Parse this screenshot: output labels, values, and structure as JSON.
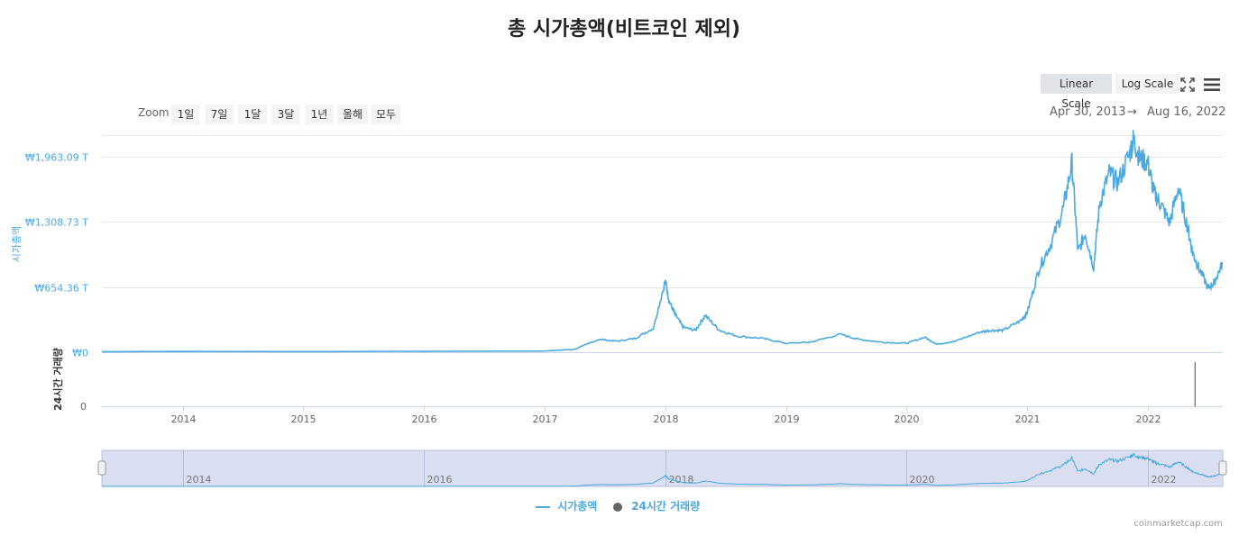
{
  "title": "총 시가총액(비트코인 제외)",
  "toolbar": {
    "linear_label": "Linear Scale",
    "log_label": "Log Scale",
    "fullscreen_icon": "fullscreen-icon",
    "menu_icon": "hamburger-menu-icon"
  },
  "zoom": {
    "label": "Zoom",
    "options": [
      "1일",
      "7일",
      "1달",
      "3달",
      "1년",
      "올해",
      "모두"
    ]
  },
  "range": {
    "from": "Apr 30, 2013",
    "arrow": "→",
    "to": "Aug 16, 2022"
  },
  "credit": "coinmarketcap.com",
  "colors": {
    "series": "#4aa9e0",
    "volume": "#444444",
    "axis_label": "#4aa9e0",
    "navigator": "#d9dff0"
  },
  "chart_data": {
    "type": "line",
    "title": "총 시가총액(비트코인 제외)",
    "ylabel": "시가총액",
    "ylabel2": "24시간 거래량",
    "yticks": [
      "₩0",
      "₩654.36 T",
      "₩1,308.73 T",
      "₩1,963.09 T"
    ],
    "ytick_values": [
      0,
      654.36,
      1308.73,
      1963.09
    ],
    "volume_tick": "0",
    "xlim": [
      2013.33,
      2022.62
    ],
    "ylim": [
      0,
      2180
    ],
    "xticks": [
      "2014",
      "2015",
      "2016",
      "2017",
      "2018",
      "2019",
      "2020",
      "2021",
      "2022"
    ],
    "navigator_ticks": [
      "2014",
      "2016",
      "2018",
      "2020",
      "2022"
    ],
    "legend_position": "bottom-center",
    "series": [
      {
        "name": "시가총액",
        "x": [
          2013.33,
          2014.0,
          2015.0,
          2016.0,
          2017.0,
          2017.25,
          2017.45,
          2017.6,
          2017.75,
          2017.9,
          2018.0,
          2018.03,
          2018.08,
          2018.15,
          2018.25,
          2018.33,
          2018.45,
          2018.6,
          2018.8,
          2019.0,
          2019.2,
          2019.45,
          2019.6,
          2019.8,
          2020.0,
          2020.15,
          2020.25,
          2020.4,
          2020.6,
          2020.7,
          2020.8,
          2020.95,
          2021.0,
          2021.1,
          2021.2,
          2021.3,
          2021.37,
          2021.42,
          2021.48,
          2021.55,
          2021.6,
          2021.68,
          2021.75,
          2021.85,
          2021.88,
          2021.93,
          2022.0,
          2022.05,
          2022.1,
          2022.18,
          2022.25,
          2022.33,
          2022.37,
          2022.42,
          2022.5,
          2022.55,
          2022.62
        ],
        "y": [
          5,
          8,
          6,
          9,
          12,
          30,
          130,
          110,
          140,
          240,
          720,
          520,
          380,
          250,
          220,
          370,
          220,
          160,
          140,
          90,
          100,
          180,
          130,
          100,
          90,
          150,
          80,
          110,
          200,
          220,
          220,
          320,
          400,
          850,
          1100,
          1450,
          1900,
          1000,
          1200,
          850,
          1500,
          1800,
          1700,
          2000,
          2140,
          1950,
          1900,
          1600,
          1500,
          1300,
          1650,
          1250,
          1000,
          850,
          640,
          700,
          900
        ]
      },
      {
        "name": "24시간 거래량",
        "x": [
          2022.39
        ],
        "y": [
          1
        ]
      }
    ]
  }
}
